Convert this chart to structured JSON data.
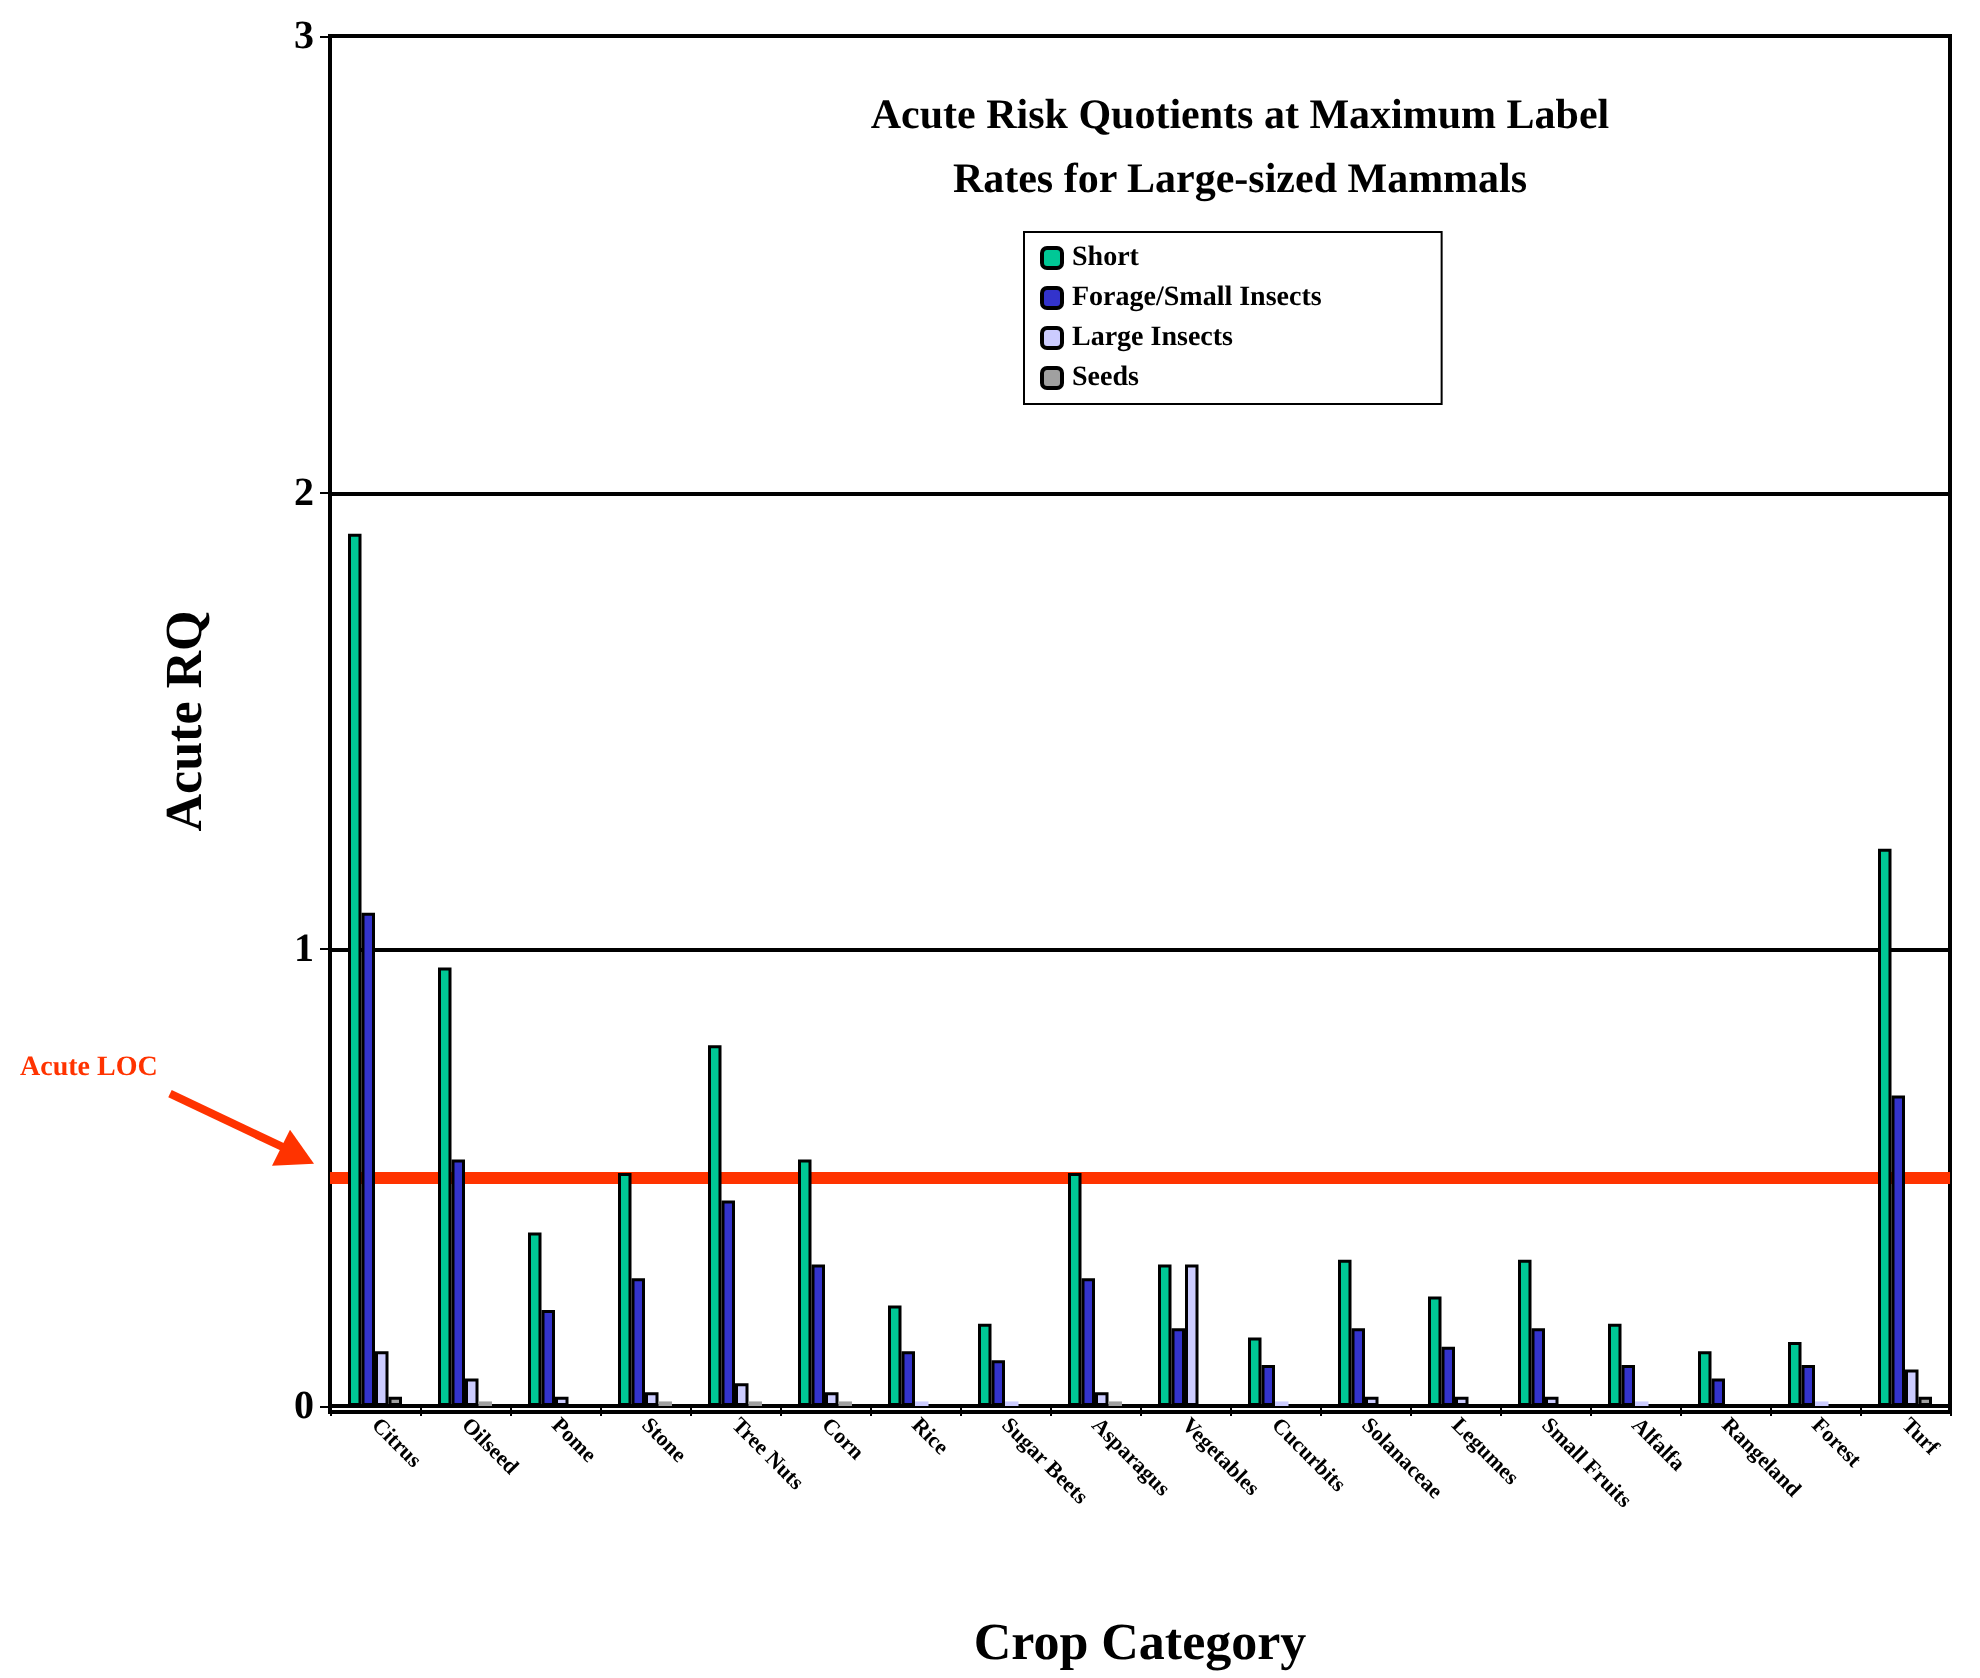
{
  "chart_data": {
    "type": "bar",
    "title": "Acute Risk Quotients at Maximum Label\nRates for Large-sized Mammals",
    "xlabel": "Crop Category",
    "ylabel": "Acute RQ",
    "categories": [
      "Citrus",
      "Oilseed",
      "Pome",
      "Stone",
      "Tree Nuts",
      "Corn",
      "Rice",
      "Sugar Beets",
      "Asparagus",
      "Vegetables",
      "Cucurbits",
      "Solanaceae",
      "Legumes",
      "Small Fruits",
      "Alfalfa",
      "Rangeland",
      "Forest",
      "Turf"
    ],
    "series": [
      {
        "name": "Short",
        "color": "#00c896",
        "values": [
          1.91,
          0.96,
          0.38,
          0.51,
          0.79,
          0.54,
          0.22,
          0.18,
          0.51,
          0.31,
          0.15,
          0.32,
          0.24,
          0.32,
          0.18,
          0.12,
          0.14,
          1.22
        ]
      },
      {
        "name": "Forage/Small Insects",
        "color": "#3333cc",
        "values": [
          1.08,
          0.54,
          0.21,
          0.28,
          0.45,
          0.31,
          0.12,
          0.1,
          0.28,
          0.17,
          0.09,
          0.17,
          0.13,
          0.17,
          0.09,
          0.06,
          0.09,
          0.68
        ]
      },
      {
        "name": "Large Insects",
        "color": "#ccccff",
        "values": [
          0.12,
          0.06,
          0.02,
          0.03,
          0.05,
          0.03,
          0.01,
          0.01,
          0.03,
          0.31,
          0.01,
          0.02,
          0.02,
          0.02,
          0.01,
          0,
          0.01,
          0.08
        ]
      },
      {
        "name": "Seeds",
        "color": "#a0a0a0",
        "values": [
          0.02,
          0.01,
          0,
          0.01,
          0.01,
          0.01,
          0,
          0,
          0.01,
          0,
          0,
          0,
          0,
          0,
          0,
          0,
          0,
          0.02
        ]
      }
    ],
    "ylim": [
      0,
      3
    ],
    "yticks": [
      0,
      1,
      2,
      3
    ],
    "grid": "y",
    "legend": "top right",
    "ref_lines": [
      {
        "axis": "y",
        "value": 0.5,
        "label": "Acute LOC",
        "color": "#ff3300"
      }
    ]
  }
}
